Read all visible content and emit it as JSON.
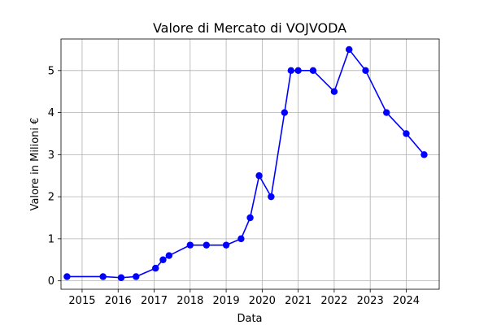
{
  "chart_data": {
    "type": "line",
    "title": "Valore di Mercato di VOJVODA",
    "xlabel": "Data",
    "ylabel": "Valore in Milioni €",
    "x_ticks": [
      "2015",
      "2016",
      "2017",
      "2018",
      "2019",
      "2020",
      "2021",
      "2022",
      "2023",
      "2024"
    ],
    "y_ticks": [
      "0",
      "1",
      "2",
      "3",
      "4",
      "5"
    ],
    "xlim": [
      "2014-06-01",
      "2024-12-01"
    ],
    "ylim": [
      -0.2,
      5.75
    ],
    "grid": true,
    "line_color": "#0000ff",
    "series": [
      {
        "x": [
          "2014-08-01",
          "2015-08-01",
          "2016-02-01",
          "2016-07-01",
          "2017-01-15",
          "2017-04-01",
          "2017-06-01",
          "2018-01-01",
          "2018-06-15",
          "2019-01-01",
          "2019-06-01",
          "2019-09-01",
          "2019-12-01",
          "2020-04-01",
          "2020-08-15",
          "2020-10-20",
          "2021-01-01",
          "2021-06-01",
          "2022-01-01",
          "2022-06-01",
          "2022-11-15",
          "2023-06-15",
          "2024-01-01",
          "2024-07-01"
        ],
        "y": [
          0.1,
          0.1,
          0.075,
          0.1,
          0.3,
          0.5,
          0.6,
          0.85,
          0.85,
          0.85,
          1.0,
          1.5,
          2.5,
          2.0,
          4.0,
          5.0,
          5.0,
          5.0,
          4.5,
          5.5,
          5.0,
          4.0,
          3.5,
          3.0
        ]
      }
    ]
  }
}
